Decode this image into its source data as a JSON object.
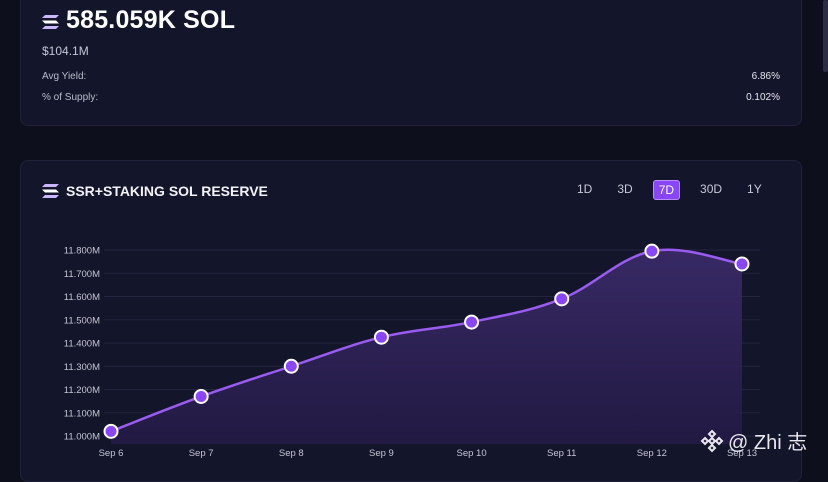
{
  "summary": {
    "amount": "585.059K SOL",
    "usd_value": "$104.1M",
    "rows": [
      {
        "label": "Avg Yield:",
        "value": "6.86%"
      },
      {
        "label": "% of Supply:",
        "value": "0.102%"
      }
    ]
  },
  "chart_panel": {
    "title": "SSR+STAKING SOL RESERVE",
    "tabs": [
      "1D",
      "3D",
      "7D",
      "30D",
      "1Y"
    ],
    "active_tab": "7D"
  },
  "watermark": "@ Zhi 志",
  "colors": {
    "background": "#0e0f1c",
    "card": "#13152a",
    "accent": "#8a46ff",
    "line": "#9a5cf0",
    "fill": "#2a1f4d"
  },
  "icons": [
    "solana-icon",
    "binance-icon"
  ],
  "chart_data": {
    "type": "area",
    "title": "SSR+STAKING SOL RESERVE",
    "xlabel": "",
    "ylabel": "",
    "categories": [
      "Sep 6",
      "Sep 7",
      "Sep 8",
      "Sep 9",
      "Sep 10",
      "Sep 11",
      "Sep 12",
      "Sep 13"
    ],
    "values": [
      11.02,
      11.17,
      11.3,
      11.425,
      11.49,
      11.59,
      11.795,
      11.74
    ],
    "ylim": [
      11.0,
      11.8
    ],
    "yticks": [
      "11.000M",
      "11.100M",
      "11.200M",
      "11.300M",
      "11.400M",
      "11.500M",
      "11.600M",
      "11.700M",
      "11.800M"
    ],
    "grid": true
  }
}
